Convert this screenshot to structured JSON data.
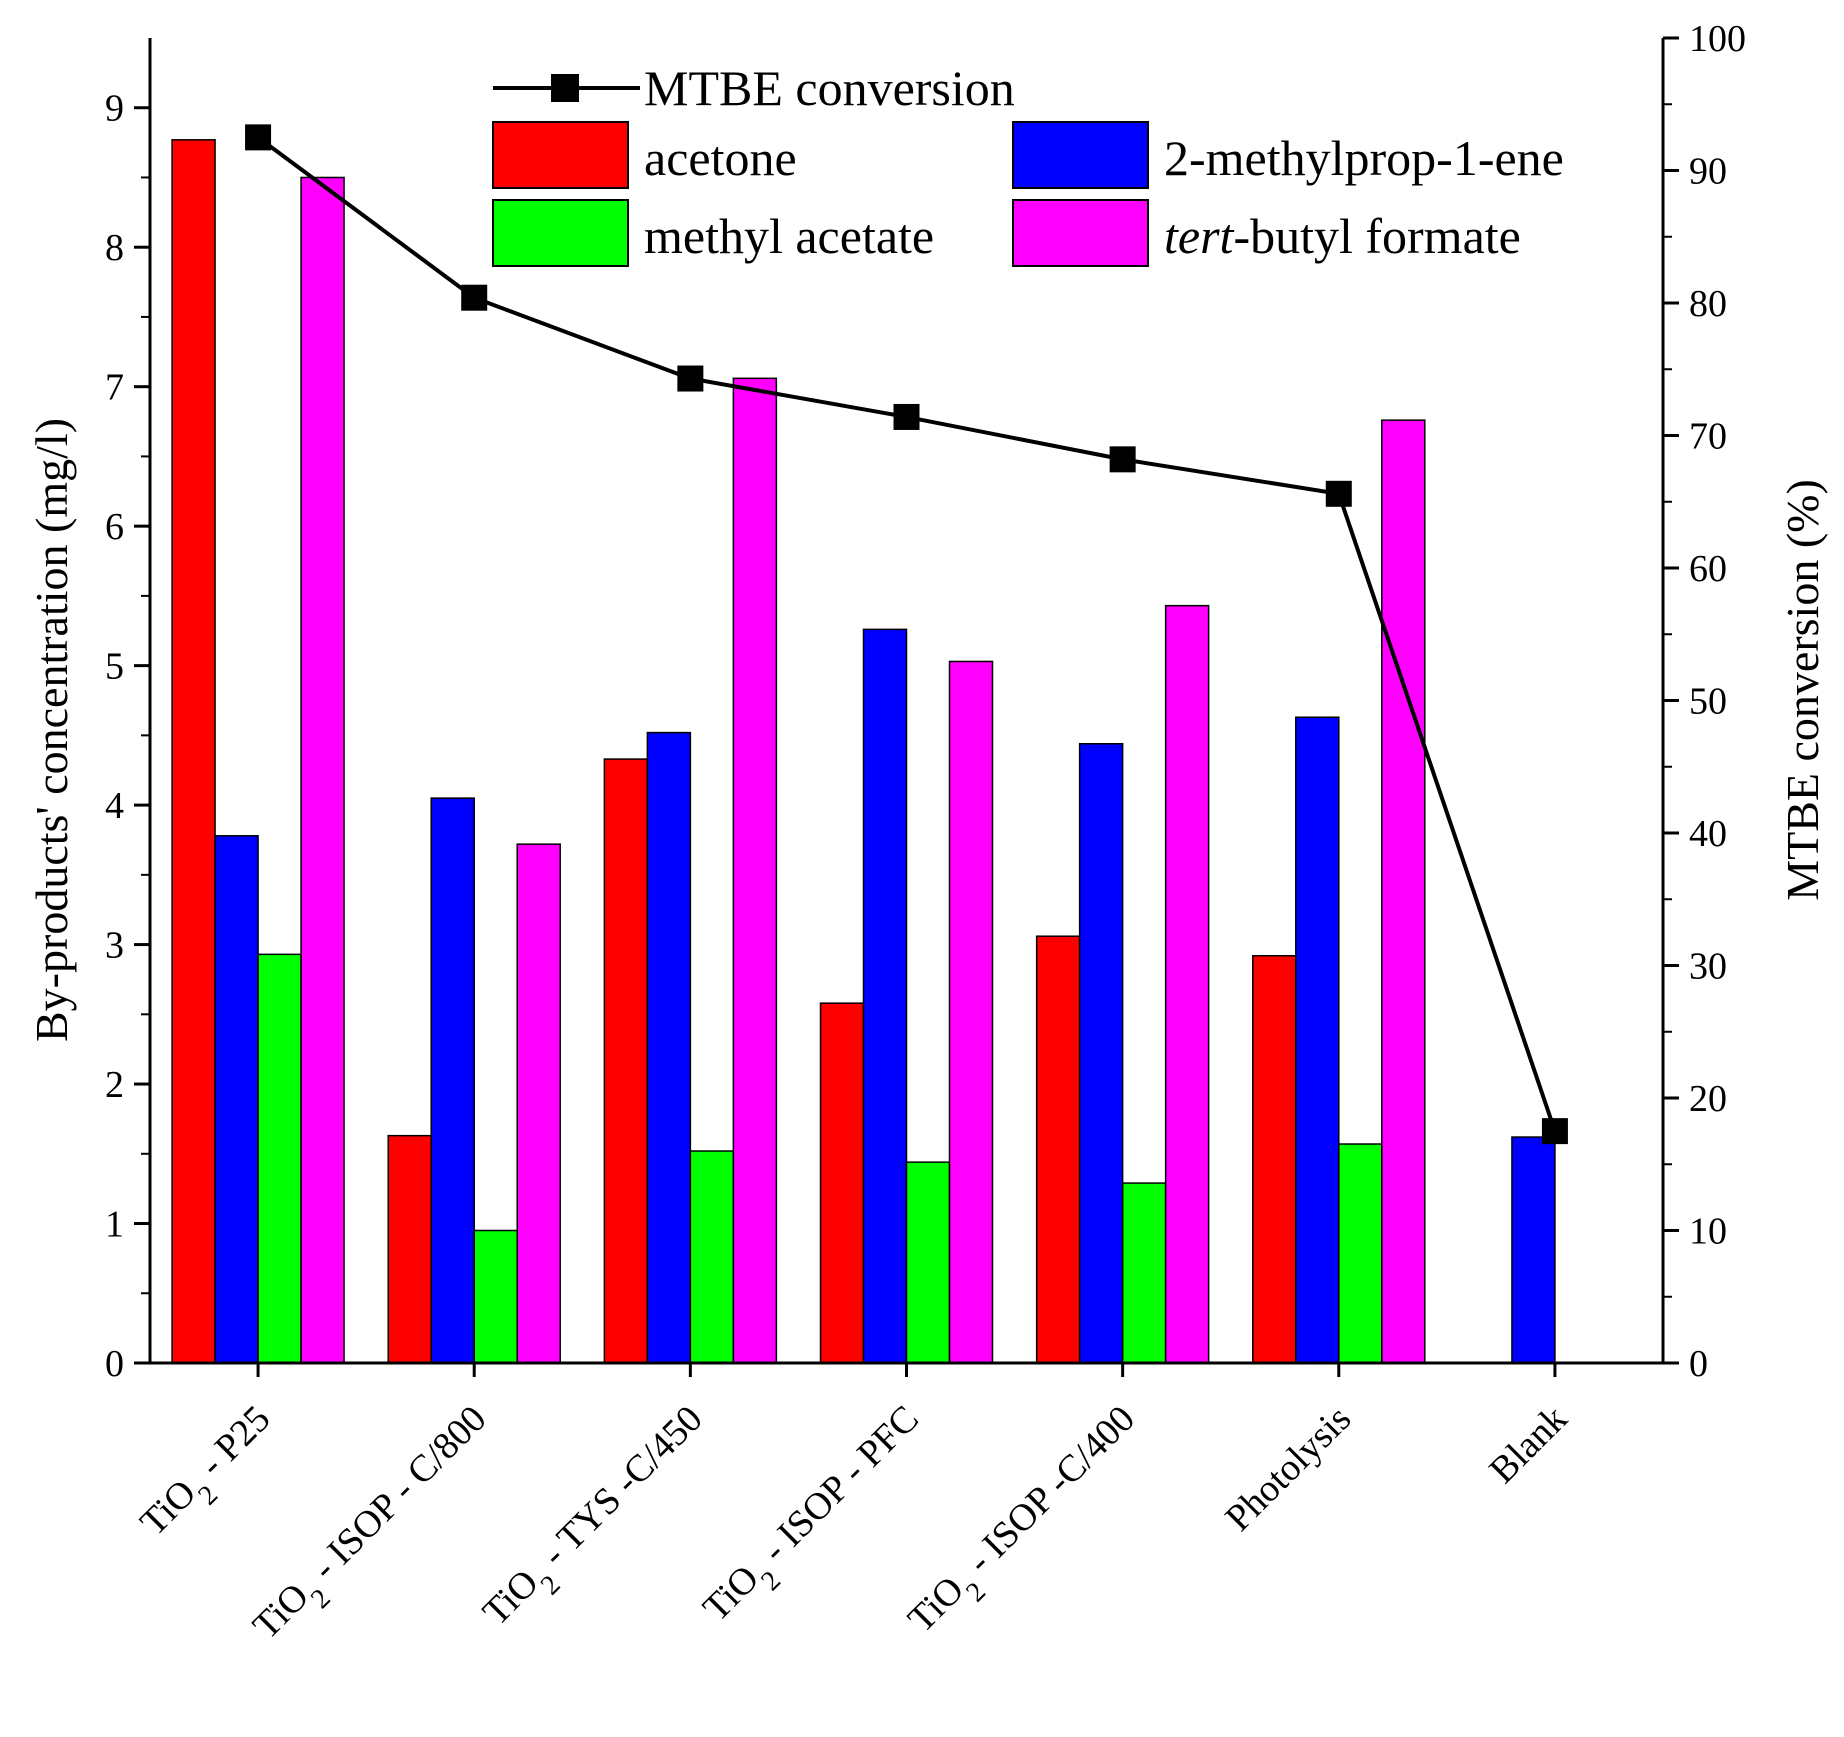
{
  "chart_data": {
    "type": "bar",
    "categories": [
      {
        "prefix": "TiO",
        "sub": "2",
        "suffix": " - P25"
      },
      {
        "prefix": "TiO",
        "sub": "2",
        "suffix": " - ISOP - C/800"
      },
      {
        "prefix": "TiO",
        "sub": "2",
        "suffix": " - TYS -C/450"
      },
      {
        "prefix": "TiO",
        "sub": "2",
        "suffix": " - ISOP - PFC"
      },
      {
        "prefix": "TiO",
        "sub": "2",
        "suffix": " - ISOP -C/400"
      },
      {
        "prefix": "",
        "sub": "",
        "suffix": "Photolysis"
      },
      {
        "prefix": "",
        "sub": "",
        "suffix": "Blank"
      }
    ],
    "series": [
      {
        "name": "acetone",
        "color": "#ff0000",
        "values": [
          8.77,
          1.63,
          4.33,
          2.58,
          3.06,
          2.92,
          0
        ]
      },
      {
        "name": "2-methylprop-1-ene",
        "color": "#0000ff",
        "values": [
          3.78,
          4.05,
          4.52,
          5.26,
          4.44,
          4.63,
          1.62
        ]
      },
      {
        "name": "methyl acetate",
        "color": "#00ff00",
        "values": [
          2.93,
          0.95,
          1.52,
          1.44,
          1.29,
          1.57,
          0
        ]
      },
      {
        "name": "tert-butyl formate",
        "name_italic": "tert",
        "name_rest": "-butyl formate",
        "color": "#ff00ff",
        "values": [
          8.5,
          3.72,
          7.06,
          5.03,
          5.43,
          6.76,
          0
        ]
      }
    ],
    "line_series": {
      "name": "MTBE conversion",
      "color": "#000000",
      "values": [
        92.5,
        80.4,
        74.3,
        71.4,
        68.2,
        65.6,
        17.5
      ]
    },
    "y_left": {
      "label": "By-products' concentration (mg/l)",
      "lim": [
        0,
        9.5
      ],
      "ticks": [
        0,
        1,
        2,
        3,
        4,
        5,
        6,
        7,
        8,
        9
      ]
    },
    "y_right": {
      "label": "MTBE conversion (%)",
      "lim": [
        0,
        100
      ],
      "ticks": [
        0,
        10,
        20,
        30,
        40,
        50,
        60,
        70,
        80,
        90,
        100
      ]
    },
    "xlabel": "",
    "grid": false,
    "legend": "top-center"
  }
}
